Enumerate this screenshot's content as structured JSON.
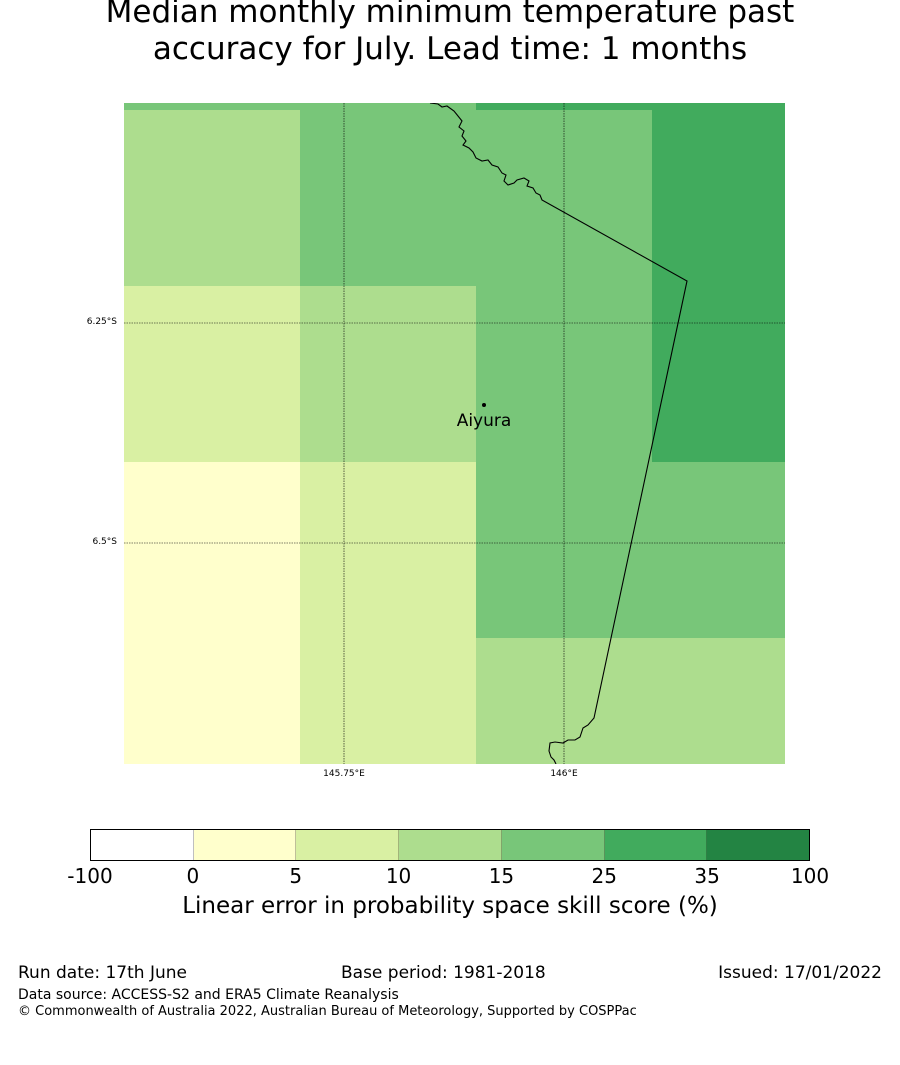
{
  "title_line1": "Median monthly minimum temperature past",
  "title_line2": "accuracy for July. Lead time: 1 months",
  "map": {
    "lat_labels": [
      "6.25°S",
      "6.5°S"
    ],
    "lon_labels": [
      "145.75°E",
      "146°E"
    ],
    "place": {
      "name": "Aiyura"
    }
  },
  "colorbar": {
    "ticks": [
      "-100",
      "0",
      "5",
      "10",
      "15",
      "25",
      "35",
      "100"
    ],
    "colors": [
      "#ffffff",
      "#ffffcc",
      "#d9f0a3",
      "#addd8e",
      "#78c679",
      "#41ab5d",
      "#238443"
    ],
    "label": "Linear error in probability space skill score (%)"
  },
  "footer": {
    "run_date": "Run date: 17th June",
    "base_period": "Base period: 1981-2018",
    "issued": "Issued: 17/01/2022",
    "data_source": "Data source: ACCESS-S2 and ERA5 Climate Reanalysis",
    "copyright": "© Commonwealth of Australia 2022, Australian Bureau of Meteorology, Supported by COSPPac"
  }
}
